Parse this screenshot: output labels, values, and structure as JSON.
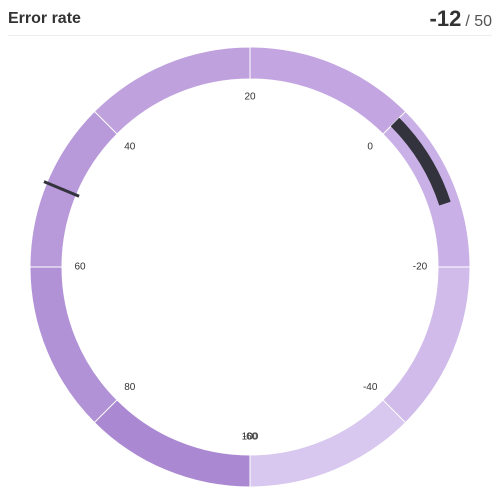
{
  "chart_data": {
    "type": "gauge",
    "title": "Error rate",
    "value": -12,
    "target": {
      "value": 50,
      "label": "/ 50"
    },
    "ylim": [
      -60,
      100
    ],
    "yticks": [
      -60,
      -40,
      -20,
      0,
      20,
      40,
      60,
      80,
      100
    ],
    "band_colors": [
      "#d8c7ef",
      "#d0bbea",
      "#c9b0e6",
      "#c3a6e1",
      "#bfa1de",
      "#b899da",
      "#b192d6",
      "#aa89d2"
    ],
    "value_color": "#33333d",
    "target_color": "#33333d"
  }
}
